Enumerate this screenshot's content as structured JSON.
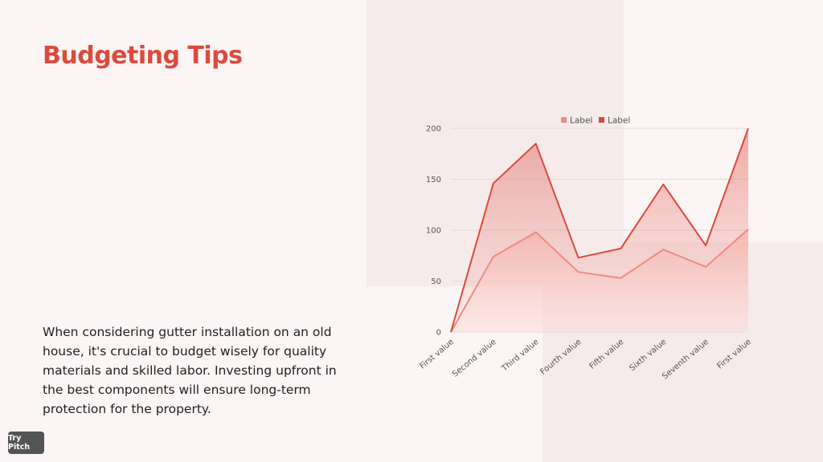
{
  "slide": {
    "title": "Budgeting Tips",
    "body": "When considering gutter installation on an old house, it's crucial to budget wisely for quality materials and skilled labor. Investing upfront in the best components will ensure long-term protection for the property.",
    "badge": "Try Pitch"
  },
  "chart_data": {
    "type": "area",
    "categories": [
      "First value",
      "Second value",
      "Third value",
      "Fourth value",
      "Fifth value",
      "Sixth value",
      "Seventh value",
      "First value"
    ],
    "series": [
      {
        "name": "Label",
        "color": "#ee8a80",
        "values": [
          0,
          74,
          98,
          59,
          53,
          81,
          64,
          101
        ]
      },
      {
        "name": "Label",
        "color": "#d94a3e",
        "values": [
          0,
          146,
          185,
          73,
          82,
          145,
          85,
          200
        ]
      }
    ],
    "yticks": [
      "0",
      "50",
      "100",
      "150",
      "200"
    ],
    "ylim": [
      0,
      200
    ],
    "grid": true,
    "legend": "top-center"
  }
}
